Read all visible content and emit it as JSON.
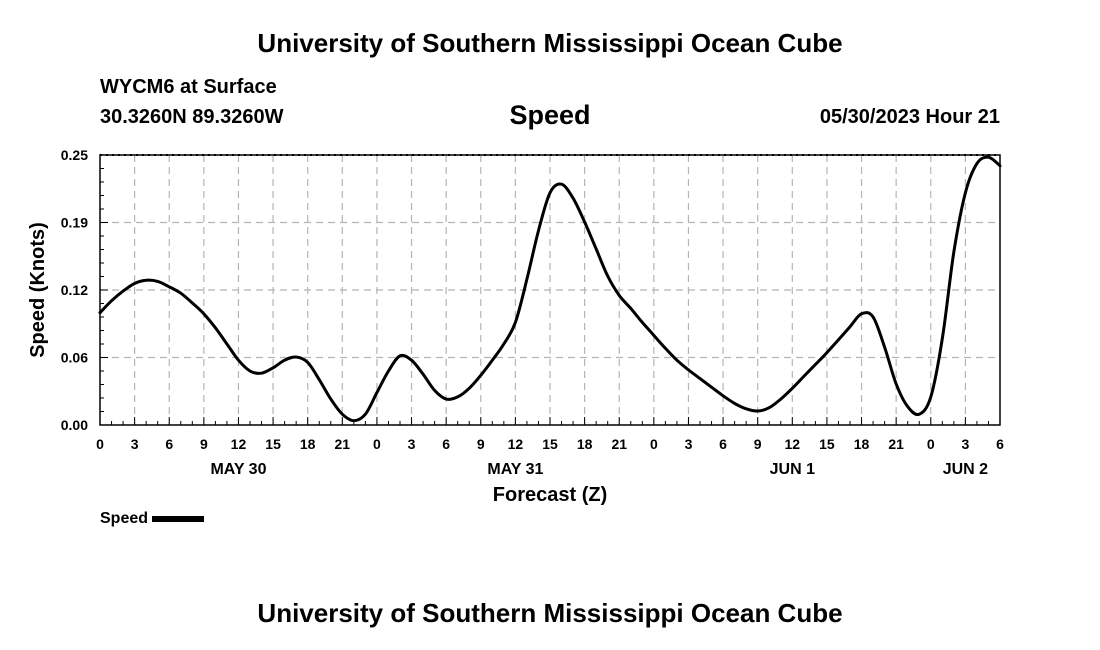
{
  "header": {
    "title": "University of Southern Mississippi Ocean Cube",
    "station": "WYCM6 at Surface",
    "location": "30.3260N  89.3260W",
    "parameter": "Speed",
    "timestamp": "05/30/2023 Hour 21"
  },
  "footer": {
    "title": "University of Southern Mississippi Ocean Cube"
  },
  "legend": {
    "label": "Speed",
    "color": "#000000"
  },
  "chart_data": {
    "type": "line",
    "xlabel": "Forecast (Z)",
    "ylabel": "Speed (Knots)",
    "x_unit": "hours",
    "xlim": [
      0,
      78
    ],
    "ylim": [
      0,
      0.25
    ],
    "yticks": [
      "0.00",
      "0.06",
      "0.12",
      "0.19",
      "0.25"
    ],
    "ytick_values": [
      0,
      0.0625,
      0.125,
      0.1875,
      0.25
    ],
    "xticks": [
      "0",
      "3",
      "6",
      "9",
      "12",
      "15",
      "18",
      "21",
      "0",
      "3",
      "6",
      "9",
      "12",
      "15",
      "18",
      "21",
      "0",
      "3",
      "6",
      "9",
      "12",
      "15",
      "18",
      "21",
      "0",
      "3",
      "6"
    ],
    "xtick_values": [
      0,
      3,
      6,
      9,
      12,
      15,
      18,
      21,
      24,
      27,
      30,
      33,
      36,
      39,
      42,
      45,
      48,
      51,
      54,
      57,
      60,
      63,
      66,
      69,
      72,
      75,
      78
    ],
    "day_labels": [
      {
        "label": "MAY 30",
        "x": 12
      },
      {
        "label": "MAY 31",
        "x": 36
      },
      {
        "label": "JUN 1",
        "x": 60
      },
      {
        "label": "JUN 2",
        "x": 75
      }
    ],
    "grid": true,
    "series": [
      {
        "name": "Speed",
        "color": "#000000",
        "x": [
          0,
          1,
          2,
          3,
          4,
          5,
          6,
          7,
          8,
          9,
          10,
          11,
          12,
          13,
          14,
          15,
          16,
          17,
          18,
          19,
          20,
          21,
          22,
          23,
          24,
          25,
          26,
          27,
          28,
          29,
          30,
          31,
          32,
          33,
          34,
          35,
          36,
          37,
          38,
          39,
          40,
          41,
          42,
          43,
          44,
          45,
          46,
          47,
          48,
          49,
          50,
          51,
          52,
          53,
          54,
          55,
          56,
          57,
          58,
          59,
          60,
          61,
          62,
          63,
          64,
          65,
          66,
          67,
          68,
          69,
          70,
          71,
          72,
          73,
          74,
          75,
          76,
          77,
          78
        ],
        "y": [
          0.104,
          0.115,
          0.124,
          0.131,
          0.134,
          0.133,
          0.128,
          0.122,
          0.113,
          0.103,
          0.09,
          0.075,
          0.06,
          0.05,
          0.048,
          0.053,
          0.06,
          0.063,
          0.058,
          0.042,
          0.024,
          0.01,
          0.004,
          0.01,
          0.03,
          0.05,
          0.064,
          0.06,
          0.047,
          0.032,
          0.024,
          0.026,
          0.034,
          0.046,
          0.06,
          0.075,
          0.095,
          0.135,
          0.18,
          0.215,
          0.223,
          0.21,
          0.188,
          0.163,
          0.138,
          0.12,
          0.108,
          0.095,
          0.083,
          0.071,
          0.06,
          0.051,
          0.043,
          0.035,
          0.027,
          0.02,
          0.015,
          0.013,
          0.016,
          0.024,
          0.034,
          0.045,
          0.056,
          0.067,
          0.079,
          0.091,
          0.103,
          0.1,
          0.072,
          0.038,
          0.017,
          0.01,
          0.026,
          0.08,
          0.16,
          0.215,
          0.242,
          0.248,
          0.24
        ]
      }
    ]
  }
}
